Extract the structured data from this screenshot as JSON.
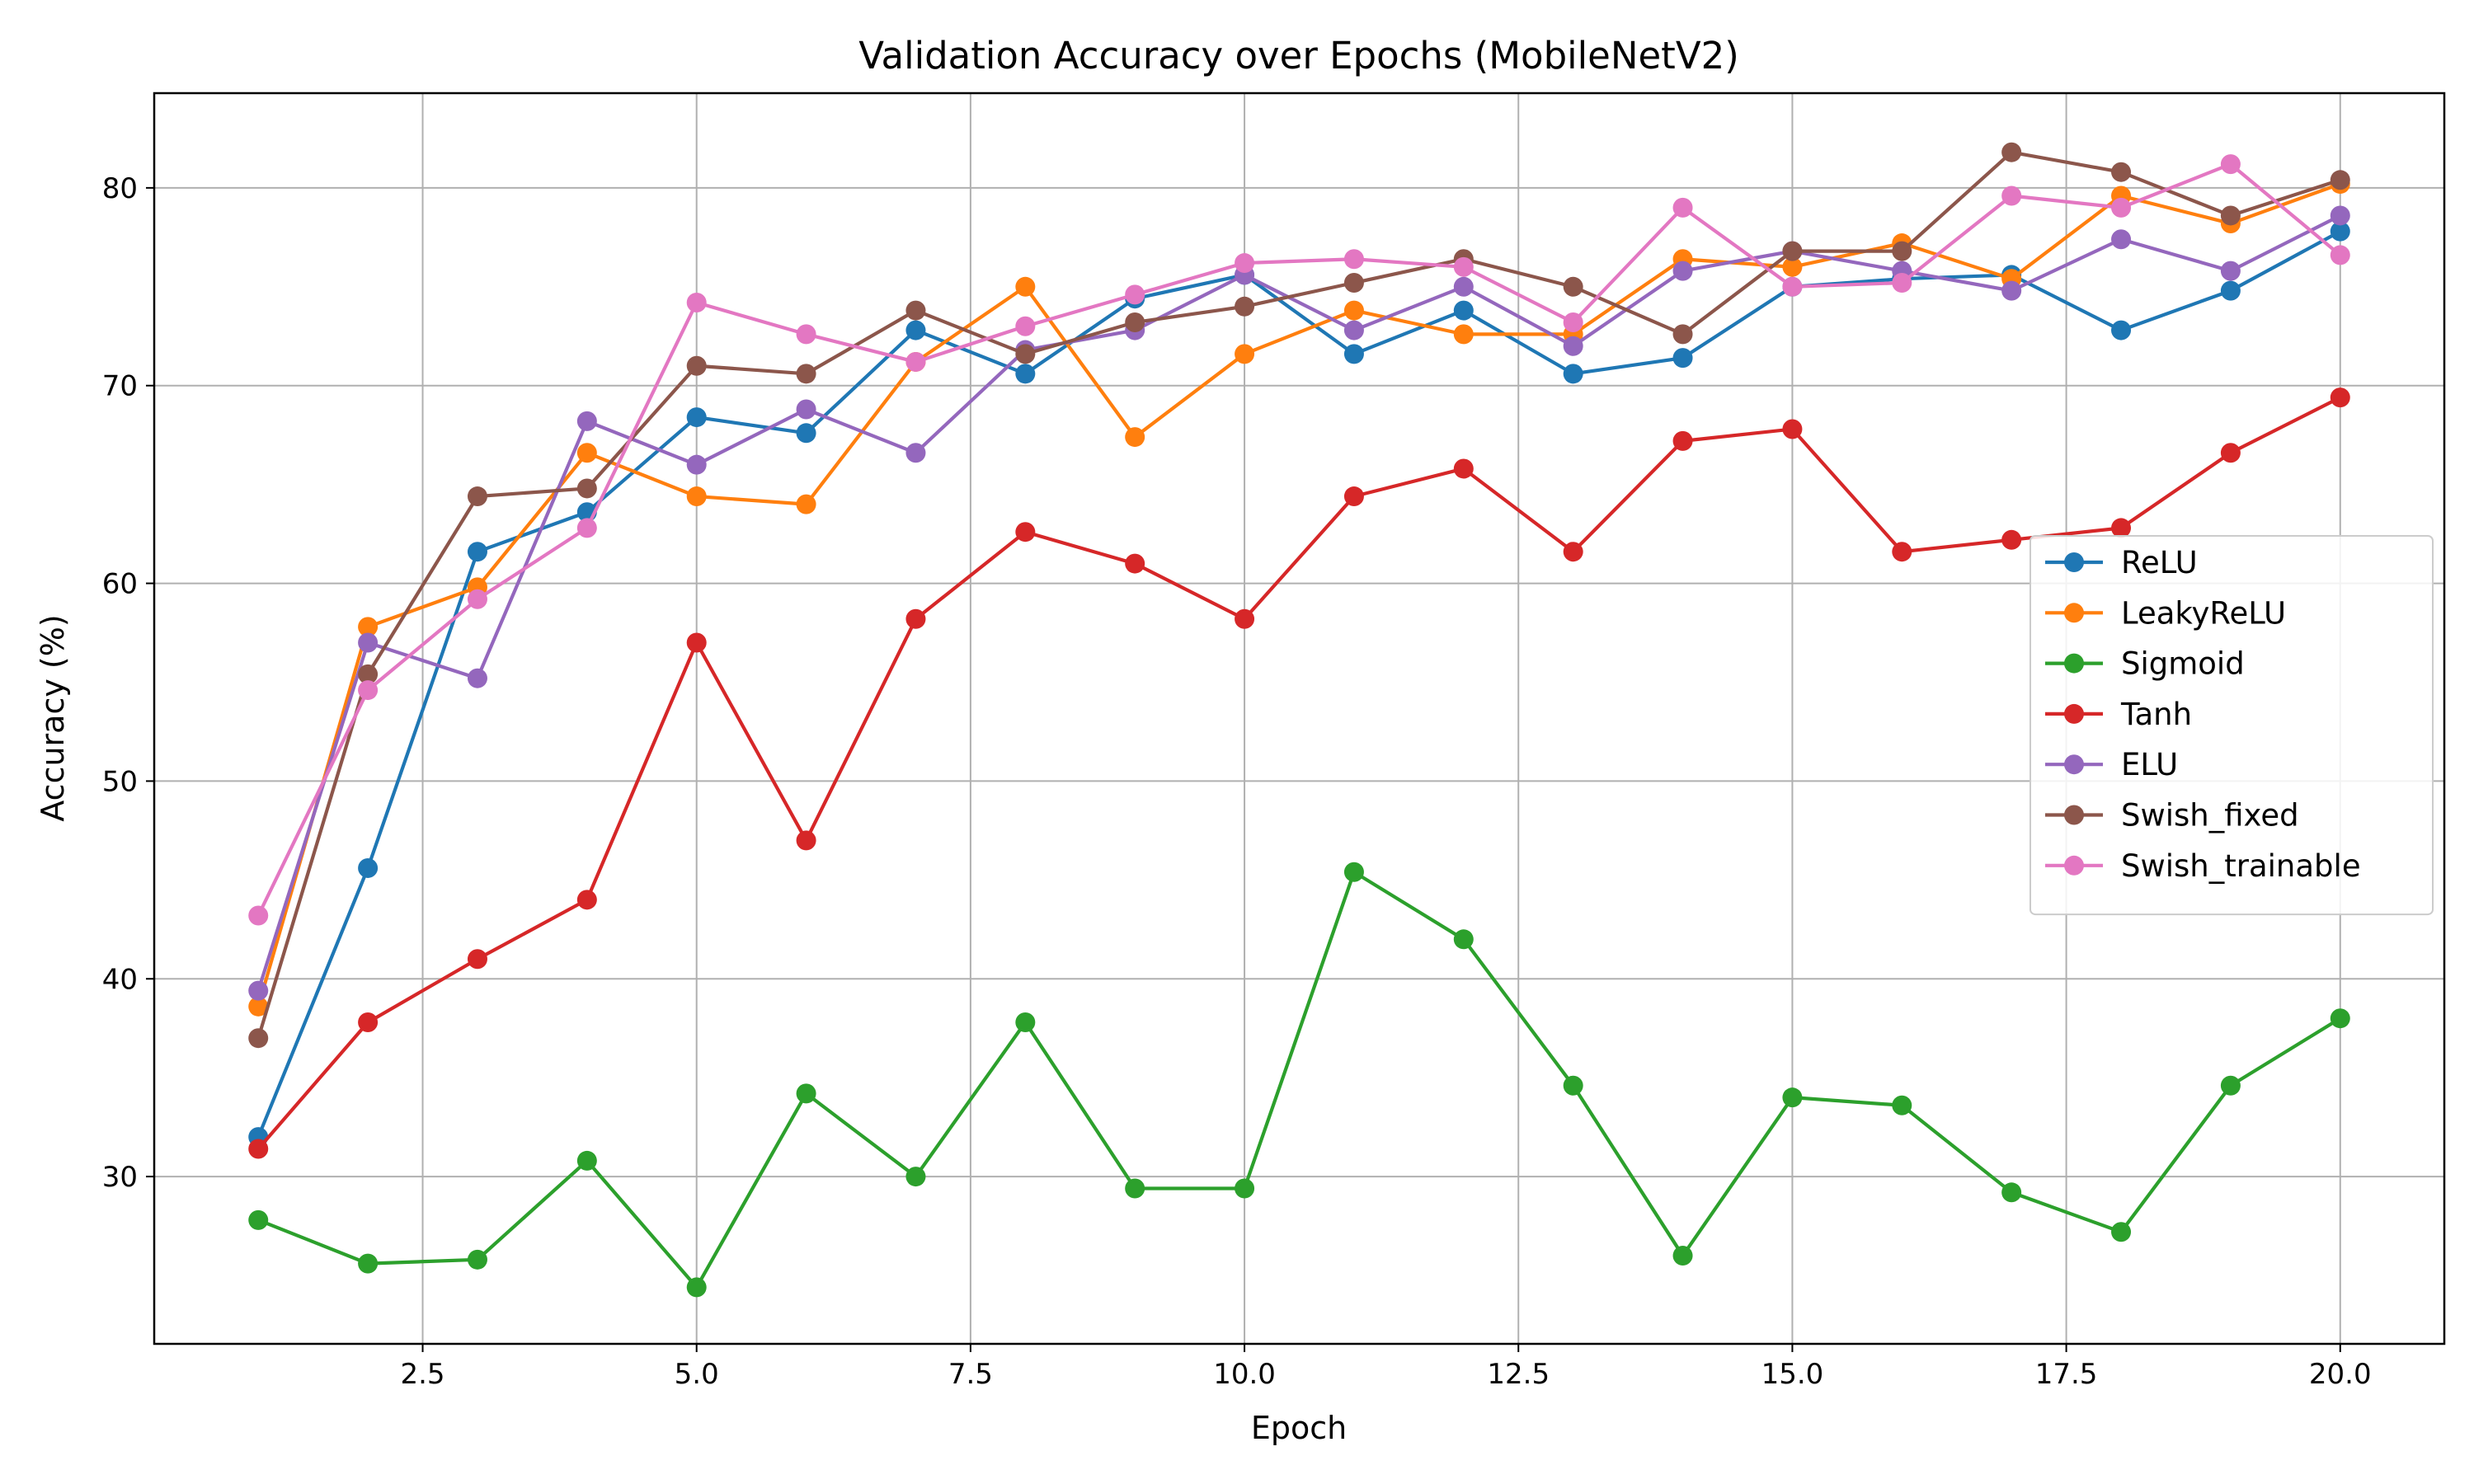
{
  "chart_data": {
    "type": "line",
    "title": "Validation Accuracy over Epochs (MobileNetV2)",
    "xlabel": "Epoch",
    "ylabel": "Accuracy (%)",
    "xlim": [
      0.05,
      20.95
    ],
    "ylim": [
      21.54,
      84.79
    ],
    "xticks": [
      2.5,
      5.0,
      7.5,
      10.0,
      12.5,
      15.0,
      17.5,
      20.0
    ],
    "xtick_labels": [
      "2.5",
      "5.0",
      "7.5",
      "10.0",
      "12.5",
      "15.0",
      "17.5",
      "20.0"
    ],
    "yticks": [
      30,
      40,
      50,
      60,
      70,
      80
    ],
    "ytick_labels": [
      "30",
      "40",
      "50",
      "60",
      "70",
      "80"
    ],
    "grid": true,
    "legend_position": "center-right",
    "x": [
      1,
      2,
      3,
      4,
      5,
      6,
      7,
      8,
      9,
      10,
      11,
      12,
      13,
      14,
      15,
      16,
      17,
      18,
      19,
      20
    ],
    "series": [
      {
        "name": "ReLU",
        "color": "#1f77b4",
        "values": [
          32.0,
          45.6,
          61.6,
          63.6,
          68.4,
          67.6,
          72.8,
          70.6,
          74.4,
          75.6,
          71.6,
          73.8,
          70.6,
          71.4,
          75.0,
          75.4,
          75.6,
          72.8,
          74.8,
          77.8
        ]
      },
      {
        "name": "LeakyReLU",
        "color": "#ff7f0e",
        "values": [
          38.6,
          57.8,
          59.8,
          66.6,
          64.4,
          64.0,
          71.2,
          75.0,
          67.4,
          71.6,
          73.8,
          72.6,
          72.6,
          76.4,
          76.0,
          77.2,
          75.4,
          79.6,
          78.2,
          80.2
        ]
      },
      {
        "name": "Sigmoid",
        "color": "#2ca02c",
        "values": [
          27.8,
          25.6,
          25.8,
          30.8,
          24.4,
          34.2,
          30.0,
          37.8,
          29.4,
          29.4,
          45.4,
          42.0,
          34.6,
          26.0,
          34.0,
          33.6,
          29.2,
          27.2,
          34.6,
          38.0
        ]
      },
      {
        "name": "Tanh",
        "color": "#d62728",
        "values": [
          31.4,
          37.8,
          41.0,
          44.0,
          57.0,
          47.0,
          58.2,
          62.6,
          61.0,
          58.2,
          64.4,
          65.8,
          61.6,
          67.2,
          67.8,
          61.6,
          62.2,
          62.8,
          66.6,
          69.4
        ]
      },
      {
        "name": "ELU",
        "color": "#9467bd",
        "values": [
          39.4,
          57.0,
          55.2,
          68.2,
          66.0,
          68.8,
          66.6,
          71.8,
          72.8,
          75.6,
          72.8,
          75.0,
          72.0,
          75.8,
          76.8,
          75.8,
          74.8,
          77.4,
          75.8,
          78.6
        ]
      },
      {
        "name": "Swish_fixed",
        "color": "#8c564b",
        "values": [
          37.0,
          55.4,
          64.4,
          64.8,
          71.0,
          70.6,
          73.8,
          71.6,
          73.2,
          74.0,
          75.2,
          76.4,
          75.0,
          72.6,
          76.8,
          76.8,
          81.8,
          80.8,
          78.6,
          80.4
        ]
      },
      {
        "name": "Swish_trainable",
        "color": "#e377c2",
        "values": [
          43.2,
          54.6,
          59.2,
          62.8,
          74.2,
          72.6,
          71.2,
          73.0,
          74.6,
          76.2,
          76.4,
          76.0,
          73.2,
          79.0,
          75.0,
          75.2,
          79.6,
          79.0,
          81.2,
          76.6
        ]
      }
    ]
  }
}
